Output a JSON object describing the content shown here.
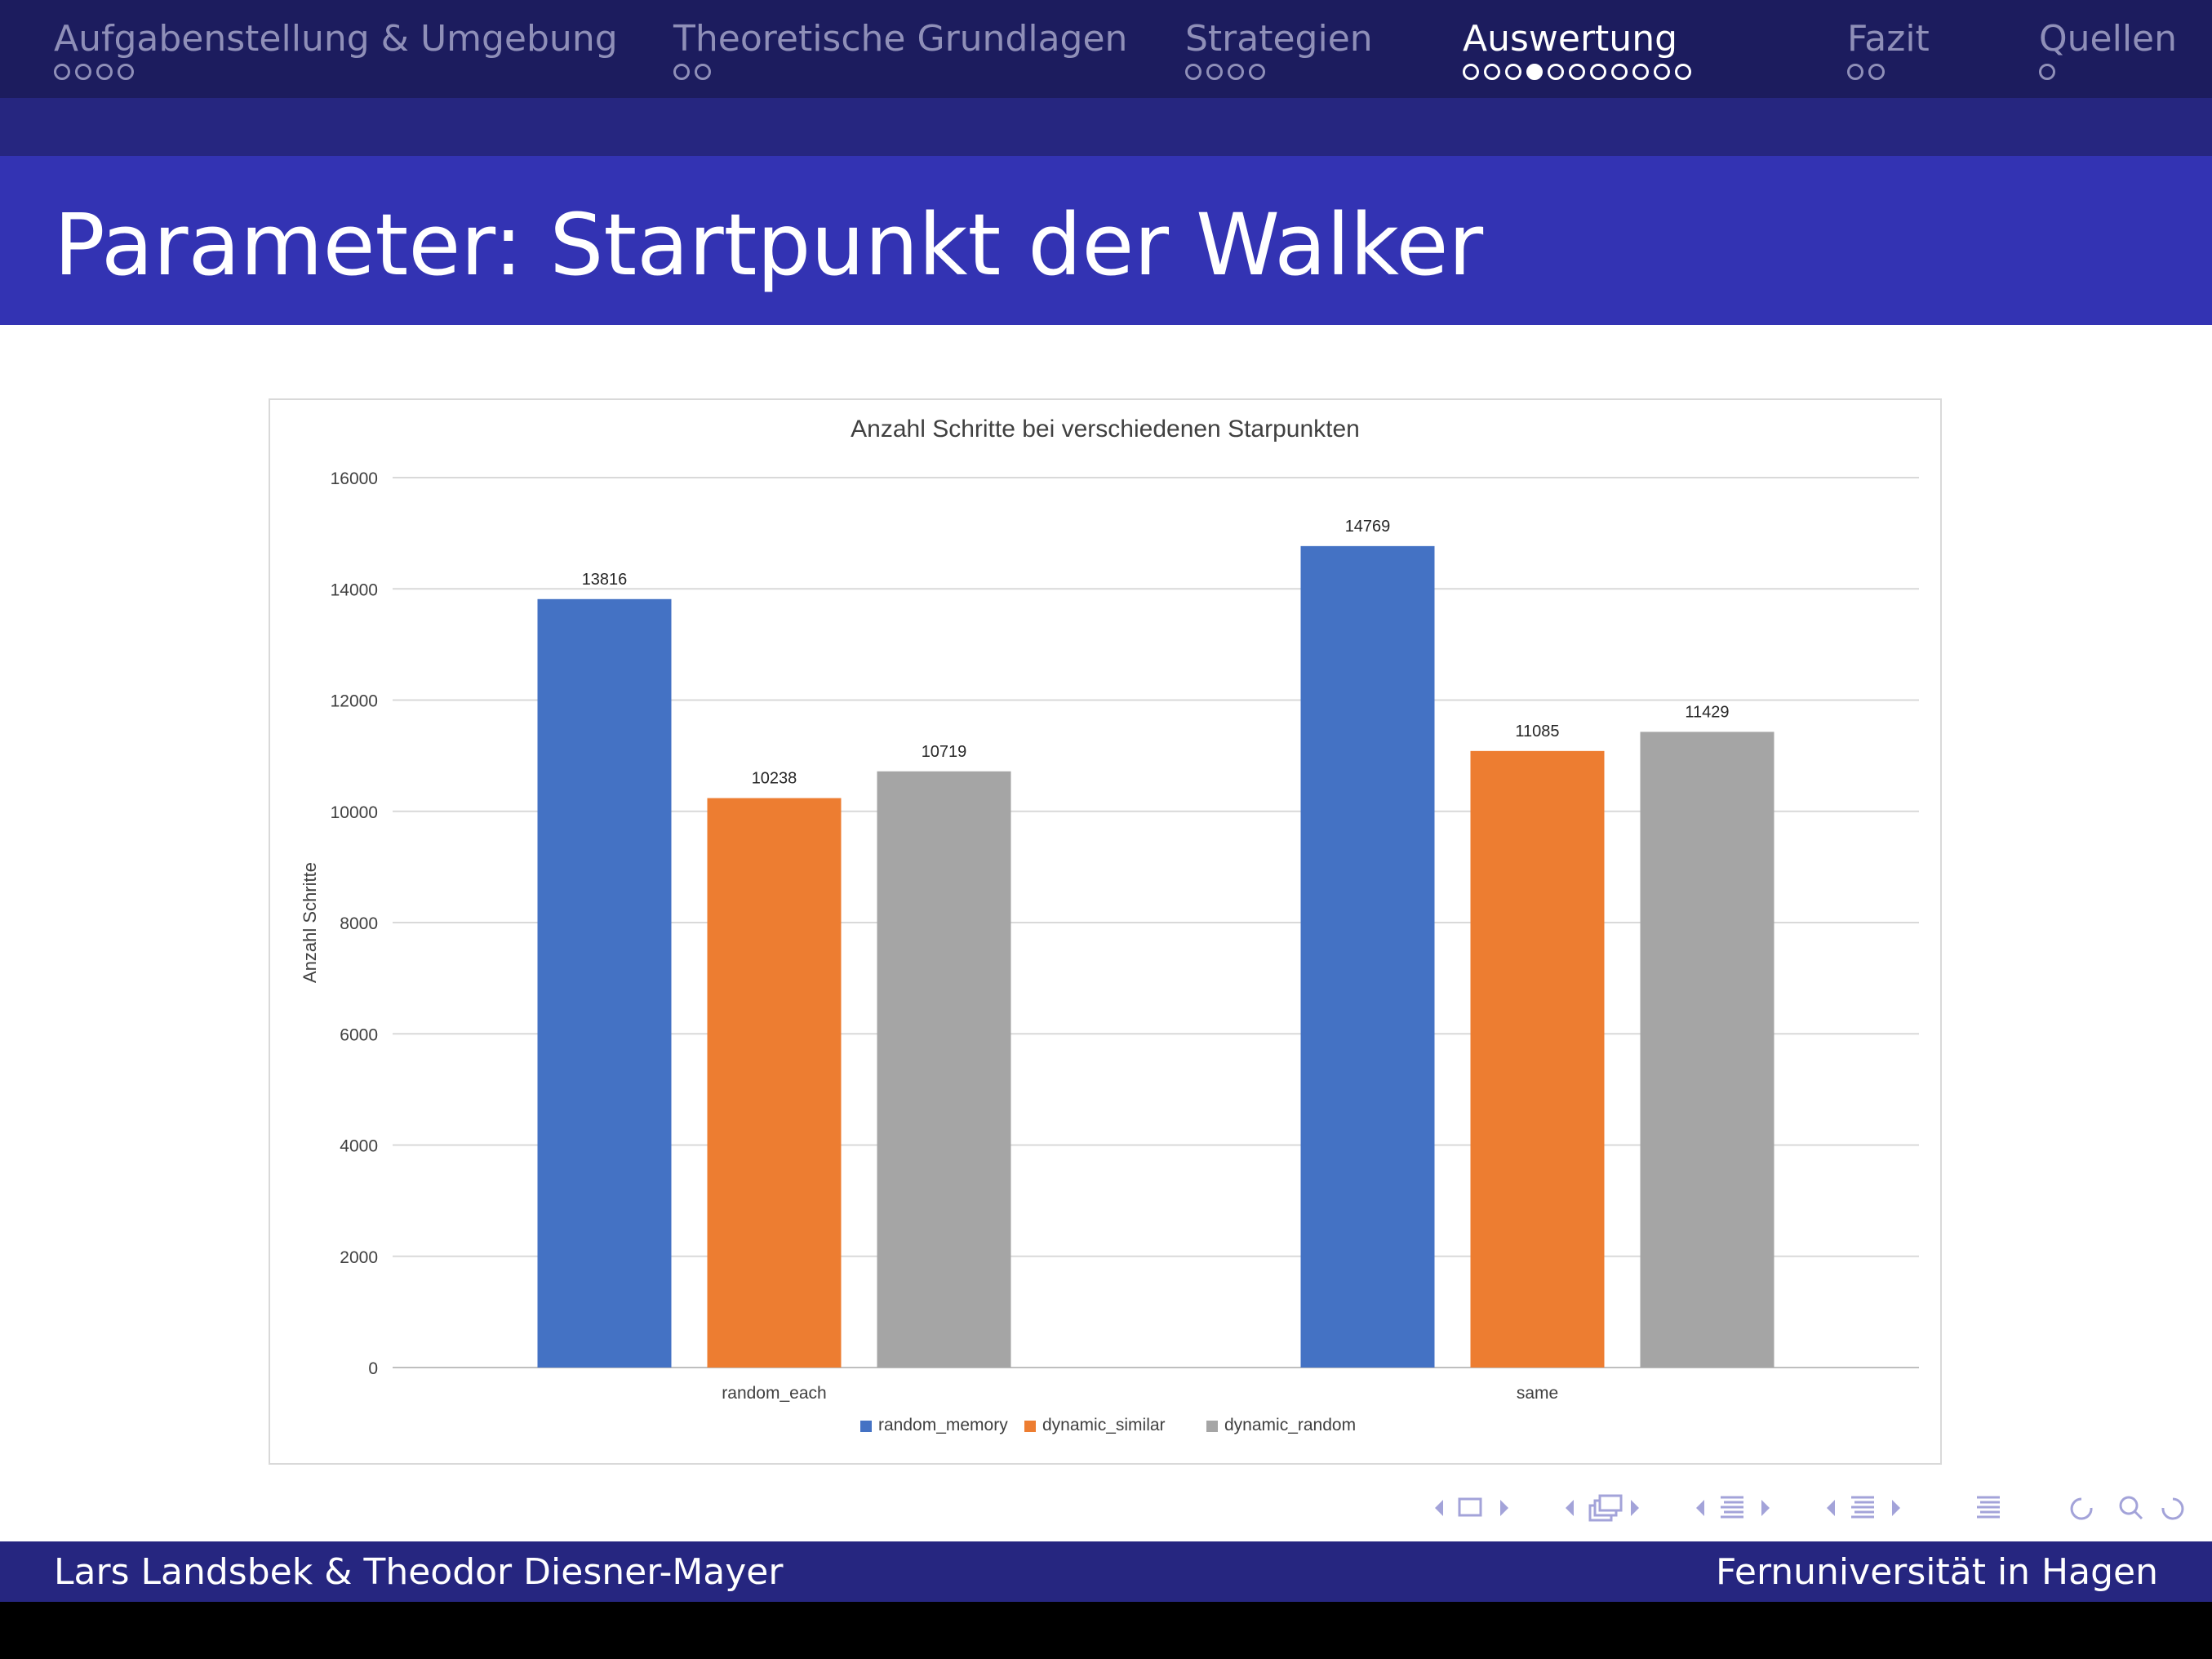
{
  "nav": {
    "sections": [
      {
        "label": "Aufgabenstellung & Umgebung",
        "dots": 4,
        "filled": -1
      },
      {
        "label": "Theoretische Grundlagen",
        "dots": 2,
        "filled": -1
      },
      {
        "label": "Strategien",
        "dots": 4,
        "filled": -1
      },
      {
        "label": "Auswertung",
        "dots": 11,
        "filled": 3,
        "active": true
      },
      {
        "label": "Fazit",
        "dots": 2,
        "filled": -1
      },
      {
        "label": "Quellen",
        "dots": 1,
        "filled": -1
      }
    ]
  },
  "slide": {
    "title": "Parameter: Startpunkt der Walker"
  },
  "footer": {
    "left": "Lars Landsbek & Theodor Diesner-Mayer",
    "right": "Fernuniversität in Hagen"
  },
  "colors": {
    "nav_bg": "#1c1c5e",
    "subbar_bg": "#262680",
    "title_bg": "#3333b3",
    "footer_bg": "#262680",
    "random_memory": "#4472c4",
    "dynamic_similar": "#ed7d31",
    "dynamic_random": "#a5a5a5"
  },
  "chart_data": {
    "type": "bar",
    "title": "Anzahl Schritte bei verschiedenen Starpunkten",
    "xlabel": "",
    "ylabel": "Anzahl Schritte",
    "categories": [
      "random_each",
      "same"
    ],
    "series": [
      {
        "name": "random_memory",
        "values": [
          13816,
          14769
        ]
      },
      {
        "name": "dynamic_similar",
        "values": [
          10238,
          11085
        ]
      },
      {
        "name": "dynamic_random",
        "values": [
          10719,
          11429
        ]
      }
    ],
    "ylim": [
      0,
      16000
    ],
    "yticks": [
      0,
      2000,
      4000,
      6000,
      8000,
      10000,
      12000,
      14000,
      16000
    ],
    "grid": true,
    "data_labels": true,
    "legend": "bottom"
  },
  "nav_symbols": [
    "triangle-left-icon",
    "frame-icon",
    "triangle-right-icon",
    "triangle-left-icon",
    "subsection-icon",
    "triangle-right-icon",
    "triangle-left-icon",
    "section-icon",
    "triangle-right-icon",
    "triangle-left-icon",
    "document-icon",
    "triangle-right-icon",
    "align-icon",
    "back-icon",
    "search-icon",
    "forward-icon"
  ]
}
